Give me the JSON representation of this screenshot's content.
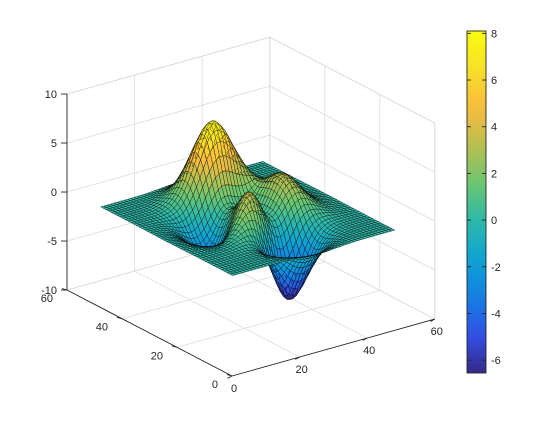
{
  "chart_data": {
    "type": "surface",
    "function": "peaks",
    "grid_size": [
      49,
      49
    ],
    "xlim": [
      0,
      60
    ],
    "ylim": [
      0,
      60
    ],
    "zlim": [
      -10,
      10
    ],
    "x_ticks": [
      "0",
      "20",
      "40",
      "60"
    ],
    "y_ticks": [
      "0",
      "20",
      "40",
      "60"
    ],
    "z_ticks": [
      "-10",
      "-5",
      "0",
      "5",
      "10"
    ],
    "z_range": [
      -6.55,
      8.1
    ],
    "colormap": "parula",
    "colorbar": {
      "ticks": [
        "-6",
        "-4",
        "-2",
        "0",
        "2",
        "4",
        "6",
        "8"
      ],
      "range": [
        -6.55,
        8.1
      ],
      "placement": "right"
    },
    "grid": true,
    "mesh_color": "#000000",
    "box_color": "#262626",
    "grid_color": "#dcdcdc",
    "title": "",
    "xlabel": "",
    "ylabel": "",
    "zlabel": ""
  }
}
